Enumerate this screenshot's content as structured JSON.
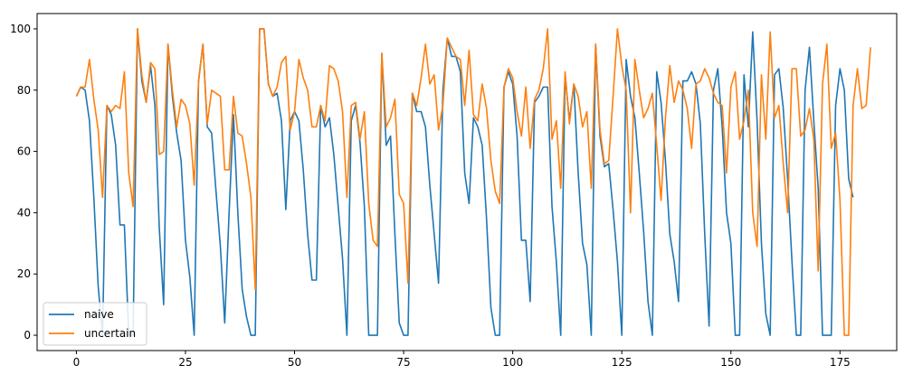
{
  "chart_data": {
    "type": "line",
    "title": "",
    "xlabel": "",
    "ylabel": "",
    "xlim": [
      -9,
      188
    ],
    "ylim": [
      -5,
      105
    ],
    "xticks": [
      0,
      25,
      50,
      75,
      100,
      125,
      150,
      175
    ],
    "yticks": [
      0,
      20,
      40,
      60,
      80,
      100
    ],
    "grid": false,
    "legend_position": "lower-left",
    "series": [
      {
        "name": "naive",
        "color": "#1f77b4",
        "values": [
          78,
          81,
          80,
          70,
          45,
          16,
          0,
          75,
          72,
          62,
          36,
          36,
          0,
          0,
          100,
          83,
          76,
          88,
          75,
          35,
          10,
          95,
          78,
          66,
          57,
          31,
          19,
          0,
          83,
          95,
          68,
          66,
          47,
          29,
          4,
          40,
          72,
          40,
          15,
          6,
          0,
          0,
          100,
          100,
          82,
          78,
          79,
          70,
          41,
          70,
          73,
          70,
          54,
          33,
          18,
          18,
          75,
          68,
          71,
          59,
          42,
          25,
          0,
          70,
          75,
          63,
          42,
          0,
          0,
          0,
          92,
          62,
          65,
          33,
          4,
          0,
          0,
          79,
          73,
          73,
          68,
          49,
          33,
          17,
          80,
          97,
          91,
          91,
          86,
          53,
          43,
          71,
          68,
          62,
          38,
          9,
          0,
          0,
          81,
          86,
          82,
          65,
          31,
          31,
          11,
          76,
          78,
          81,
          81,
          42,
          24,
          0,
          85,
          70,
          82,
          53,
          30,
          23,
          0,
          95,
          65,
          55,
          56,
          41,
          24,
          0,
          90,
          78,
          71,
          53,
          34,
          11,
          0,
          86,
          76,
          57,
          33,
          24,
          11,
          83,
          83,
          86,
          82,
          69,
          33,
          3,
          80,
          87,
          68,
          40,
          30,
          0,
          0,
          85,
          68,
          99,
          70,
          30,
          7,
          0,
          85,
          87,
          74,
          51,
          24,
          0,
          0,
          80,
          94,
          70,
          48,
          0,
          0,
          0,
          75,
          87,
          80,
          51,
          45
        ]
      },
      {
        "name": "uncertain",
        "color": "#ff7f0e",
        "values": [
          78,
          81,
          81,
          90,
          77,
          67,
          45,
          75,
          73,
          75,
          74,
          86,
          53,
          42,
          100,
          85,
          76,
          89,
          87,
          59,
          60,
          95,
          80,
          68,
          77,
          75,
          69,
          49,
          83,
          95,
          69,
          80,
          79,
          78,
          54,
          54,
          78,
          66,
          65,
          56,
          45,
          15,
          100,
          100,
          82,
          78,
          81,
          89,
          91,
          67,
          73,
          90,
          84,
          80,
          68,
          68,
          75,
          70,
          88,
          87,
          83,
          73,
          45,
          75,
          76,
          64,
          73,
          43,
          31,
          29,
          92,
          68,
          71,
          77,
          46,
          43,
          17,
          79,
          75,
          84,
          95,
          82,
          85,
          67,
          75,
          97,
          94,
          91,
          90,
          75,
          93,
          72,
          70,
          82,
          74,
          57,
          47,
          43,
          81,
          87,
          84,
          73,
          65,
          81,
          61,
          77,
          80,
          87,
          100,
          64,
          70,
          48,
          86,
          69,
          82,
          78,
          68,
          73,
          48,
          95,
          67,
          56,
          57,
          78,
          100,
          88,
          80,
          40,
          90,
          80,
          71,
          74,
          79,
          62,
          44,
          71,
          88,
          76,
          83,
          80,
          74,
          61,
          82,
          83,
          87,
          84,
          79,
          76,
          75,
          53,
          81,
          86,
          64,
          70,
          80,
          40,
          29,
          85,
          64,
          99,
          71,
          75,
          56,
          40,
          87,
          87,
          65,
          67,
          74,
          64,
          21,
          82,
          95,
          61,
          66,
          44,
          0,
          0,
          75,
          87,
          74,
          75,
          94
        ]
      }
    ]
  }
}
